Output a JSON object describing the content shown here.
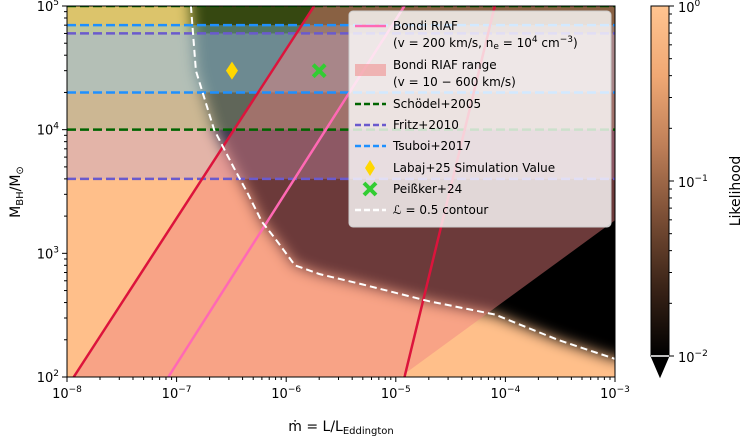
{
  "chart_data": {
    "type": "heatmap",
    "title": "",
    "xlabel": "ṁ = L/L",
    "xlabel_sub": "Eddington",
    "ylabel": "M",
    "ylabel_sub": "BH",
    "ylabel_div": "/M",
    "ylabel_sun": "⊙",
    "x_scale": "log",
    "y_scale": "log",
    "xlim": [
      1e-08,
      0.001
    ],
    "ylim": [
      100,
      100000
    ],
    "x_ticks": [
      {
        "value": 1e-08,
        "base": "10",
        "exp": "−8"
      },
      {
        "value": 1e-07,
        "base": "10",
        "exp": "−7"
      },
      {
        "value": 1e-06,
        "base": "10",
        "exp": "−6"
      },
      {
        "value": 1e-05,
        "base": "10",
        "exp": "−5"
      },
      {
        "value": 0.0001,
        "base": "10",
        "exp": "−4"
      },
      {
        "value": 0.001,
        "base": "10",
        "exp": "−3"
      }
    ],
    "y_ticks": [
      {
        "value": 100,
        "base": "10",
        "exp": "2"
      },
      {
        "value": 1000,
        "base": "10",
        "exp": "3"
      },
      {
        "value": 10000,
        "base": "10",
        "exp": "4"
      },
      {
        "value": 100000,
        "base": "10",
        "exp": "5"
      }
    ],
    "colorbar": {
      "label": "Likelihood",
      "scale": "log",
      "range": [
        0.01,
        1
      ],
      "extend": "min",
      "ticks": [
        {
          "value": 1,
          "base": "10",
          "exp": "0"
        },
        {
          "value": 0.1,
          "base": "10",
          "exp": "−1"
        },
        {
          "value": 0.01,
          "base": "10",
          "exp": "−2"
        }
      ],
      "colors": [
        "#000000",
        "#3b2418",
        "#7c4f36",
        "#be7f58",
        "#f0a874",
        "#ffc490"
      ]
    },
    "likelihood_region": {
      "description_colors": {
        "high": "#ffbf8a",
        "low": "#000000"
      },
      "contour_level": 0.5,
      "contour": [
        [
          1.35e-07,
          100000
        ],
        [
          1.5e-07,
          30000
        ],
        [
          2.2e-07,
          10000
        ],
        [
          3.3e-07,
          5000
        ],
        [
          4.5e-07,
          3000
        ],
        [
          6e-07,
          1800
        ],
        [
          8e-07,
          1300
        ],
        [
          1.2e-06,
          800
        ],
        [
          2e-06,
          680
        ],
        [
          5e-06,
          560
        ],
        [
          2e-05,
          410
        ],
        [
          8e-05,
          320
        ],
        [
          0.0003,
          200
        ],
        [
          0.001,
          140
        ]
      ]
    },
    "series": [
      {
        "name": "Bondi RIAF",
        "name_2": "(v = 200 km/s, n",
        "name_2_sub": "e",
        "name_2_rest": " = 10",
        "name_2_sup": "4",
        "name_2_tail": " cm",
        "name_2_sup2": "−3",
        "name_2_end": ")",
        "type": "line",
        "color": "#ff69b4",
        "points": [
          [
            8.4e-08,
            100
          ],
          [
            1.2e-05,
            100000
          ]
        ]
      },
      {
        "name": "Bondi RIAF range",
        "name_2": "(v = 10 − 600 km/s)",
        "type": "band",
        "color": "#f08080",
        "lower": [
          [
            1.1e-05,
            100
          ],
          [
            0.001,
            1850
          ]
        ],
        "upper": [
          [
            1e-08,
            120
          ],
          [
            1e-06,
            11000
          ]
        ],
        "upper_extra": [
          [
            1.15e-08,
            100
          ],
          [
            1.8e-06,
            100000
          ]
        ],
        "lower_extra": [
          [
            1.2e-05,
            100
          ],
          [
            7.5e-05,
            522
          ]
        ]
      },
      {
        "name": "Schödel+2005",
        "type": "hline",
        "color": "#006400",
        "values": [
          10000,
          100000
        ]
      },
      {
        "name": "Fritz+2010",
        "type": "hline",
        "color": "#6a5acd",
        "values": [
          4000,
          60000
        ]
      },
      {
        "name": "Tsuboi+2017",
        "type": "hline",
        "color": "#1e90ff",
        "values": [
          20000,
          70000
        ]
      },
      {
        "name": "Labaj+25 Simulation Value",
        "type": "marker",
        "marker": "diamond",
        "color": "#ffd700",
        "points": [
          [
            3.2e-07,
            30000
          ]
        ]
      },
      {
        "name": "Peißker+24",
        "type": "marker",
        "marker": "x",
        "color": "#32cd32",
        "points": [
          [
            2e-06,
            30000
          ]
        ]
      },
      {
        "name": "ℒ = 0.5 contour",
        "type": "contour",
        "color": "#ffffff"
      }
    ],
    "bands_horizontal": [
      {
        "name": "Schödel+2005",
        "range": [
          10000,
          100000
        ],
        "color": "#9acd32"
      },
      {
        "name": "Fritz+2010",
        "range": [
          4000,
          60000
        ],
        "color": "#b0a0e0"
      },
      {
        "name": "Tsuboi+2017",
        "range": [
          20000,
          70000
        ],
        "color": "#87cefa"
      }
    ],
    "grid": false,
    "legend_position": "top-right"
  }
}
